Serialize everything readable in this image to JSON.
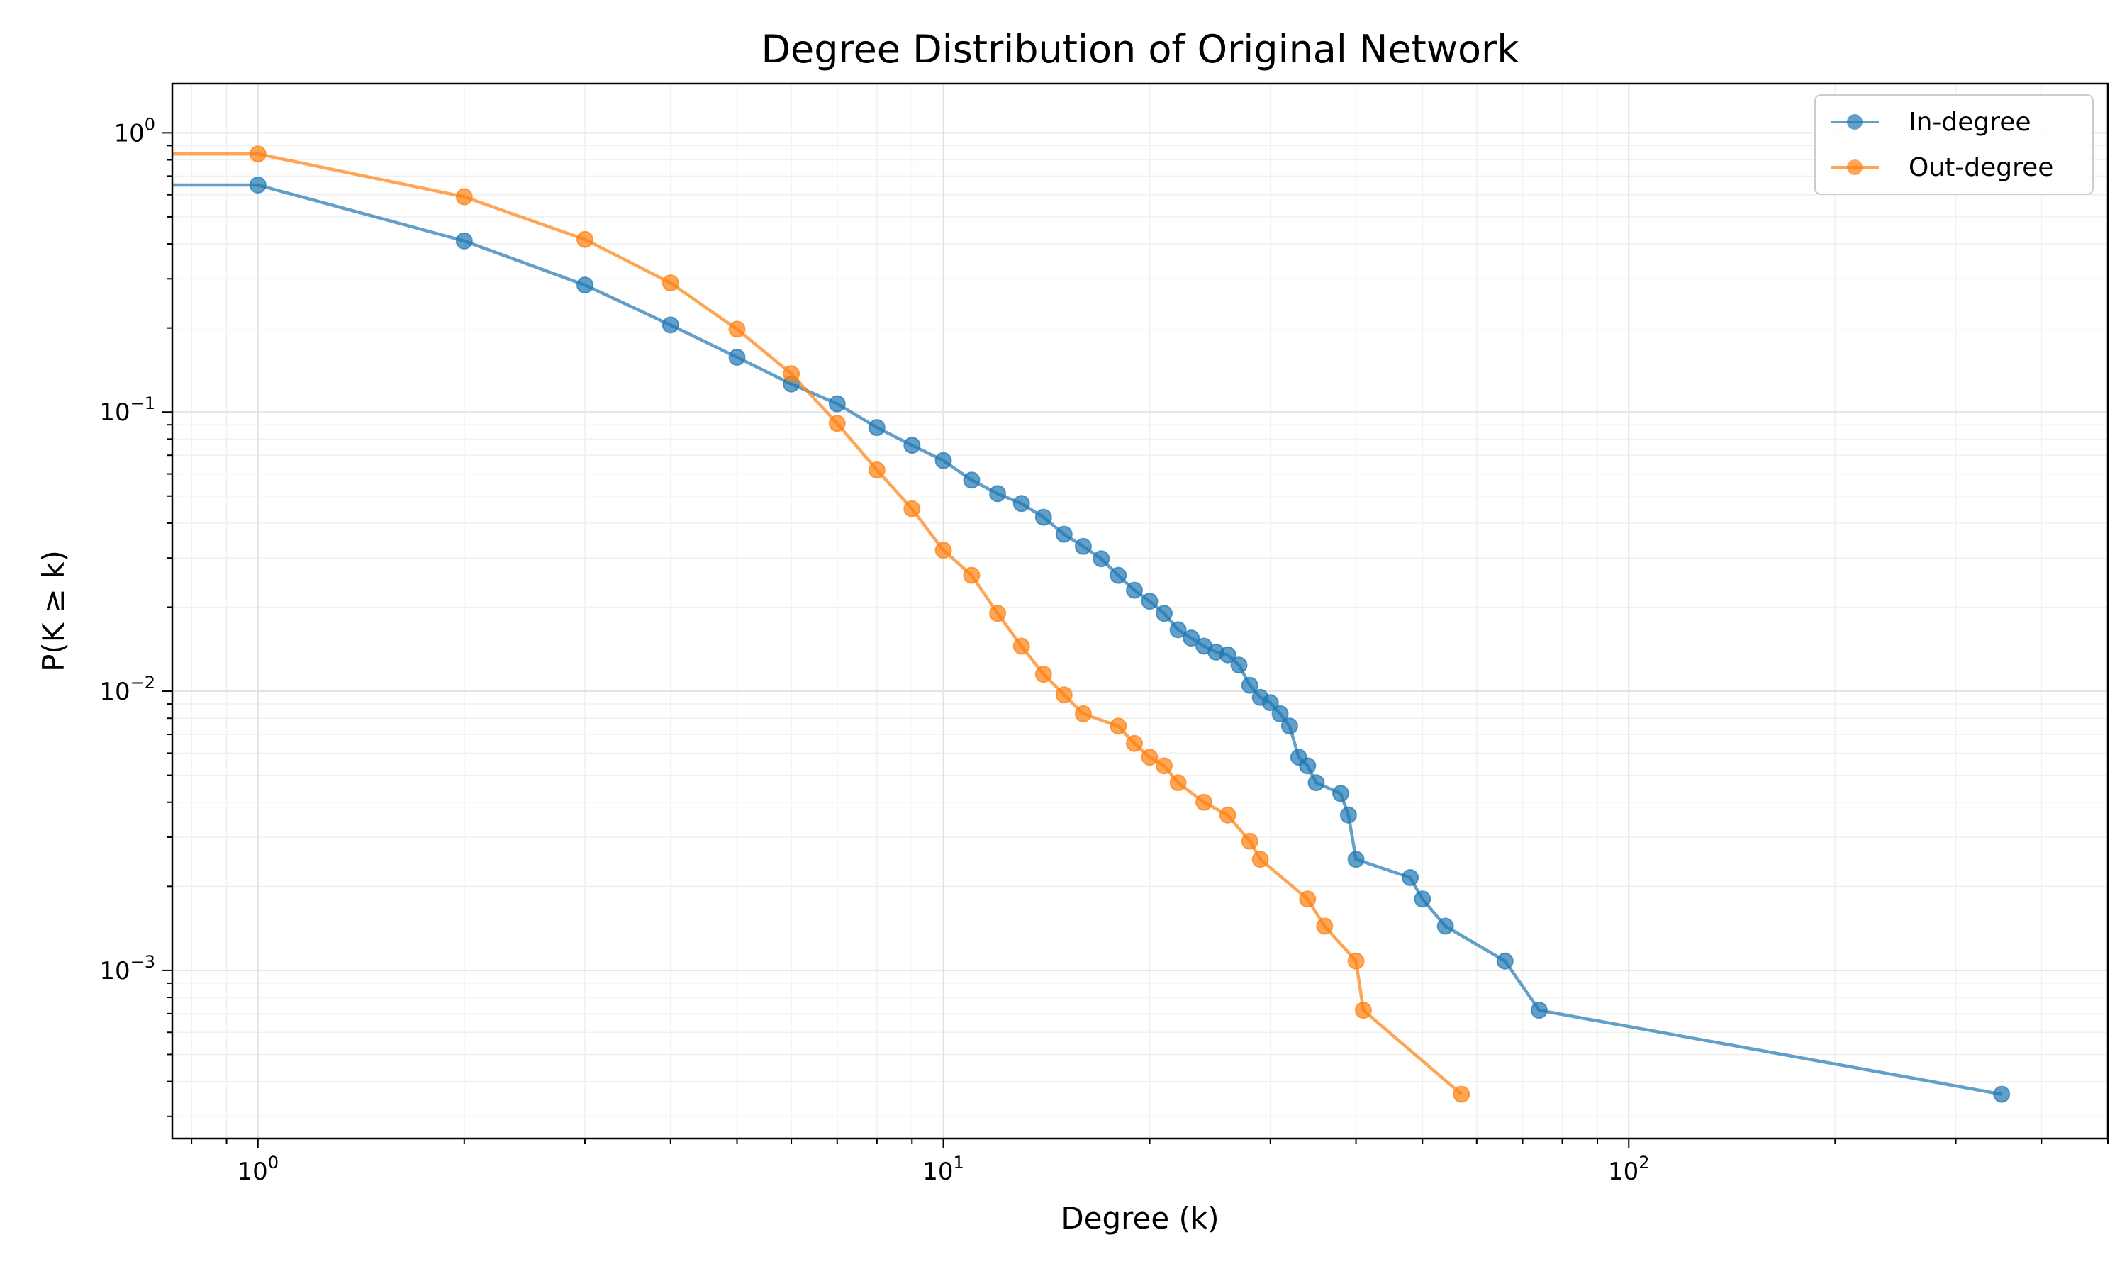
{
  "chart_data": {
    "type": "line",
    "title": "Degree Distribution of Original Network",
    "xlabel": "Degree (k)",
    "ylabel": "P(K ≥ k)",
    "x_scale": "log",
    "y_scale": "log",
    "xlim": [
      0.75,
      500
    ],
    "ylim": [
      0.00025,
      1.5
    ],
    "grid": true,
    "legend_position": "top-right",
    "x_ticks": [
      {
        "value": 1,
        "base": "10",
        "exp": "0"
      },
      {
        "value": 10,
        "base": "10",
        "exp": "1"
      },
      {
        "value": 100,
        "base": "10",
        "exp": "2"
      }
    ],
    "y_ticks": [
      {
        "value": 1,
        "base": "10",
        "exp": "0"
      },
      {
        "value": 0.1,
        "base": "10",
        "exp": "−1"
      },
      {
        "value": 0.01,
        "base": "10",
        "exp": "−2"
      },
      {
        "value": 0.001,
        "base": "10",
        "exp": "−3"
      }
    ],
    "series": [
      {
        "name": "In-degree",
        "color": "#1f77b4",
        "x": [
          1,
          2,
          3,
          4,
          5,
          6,
          7,
          8,
          9,
          10,
          11,
          12,
          13,
          14,
          15,
          16,
          17,
          18,
          19,
          20,
          21,
          22,
          23,
          24,
          25,
          26,
          27,
          28,
          29,
          30,
          31,
          32,
          33,
          34,
          35,
          38,
          39,
          40,
          48,
          50,
          54,
          66,
          74,
          350
        ],
        "y": [
          0.65,
          0.41,
          0.285,
          0.205,
          0.157,
          0.126,
          0.107,
          0.088,
          0.076,
          0.067,
          0.057,
          0.051,
          0.047,
          0.042,
          0.0365,
          0.033,
          0.0298,
          0.026,
          0.023,
          0.021,
          0.019,
          0.0166,
          0.0155,
          0.0145,
          0.0138,
          0.0135,
          0.0124,
          0.0105,
          0.0095,
          0.0091,
          0.0083,
          0.0075,
          0.0058,
          0.0054,
          0.0047,
          0.0043,
          0.0036,
          0.0025,
          0.00215,
          0.0018,
          0.00144,
          0.00108,
          0.00072,
          0.00036
        ]
      },
      {
        "name": "Out-degree",
        "color": "#ff7f0e",
        "x": [
          1,
          2,
          3,
          4,
          5,
          6,
          7,
          8,
          9,
          10,
          11,
          12,
          13,
          14,
          15,
          16,
          18,
          19,
          20,
          21,
          22,
          24,
          26,
          28,
          29,
          34,
          36,
          40,
          41,
          57
        ],
        "y": [
          0.84,
          0.59,
          0.415,
          0.29,
          0.198,
          0.137,
          0.091,
          0.062,
          0.045,
          0.032,
          0.026,
          0.019,
          0.0145,
          0.0115,
          0.0097,
          0.0083,
          0.0075,
          0.0065,
          0.0058,
          0.0054,
          0.0047,
          0.004,
          0.0036,
          0.0029,
          0.0025,
          0.0018,
          0.00144,
          0.00108,
          0.00072,
          0.00036
        ]
      }
    ]
  }
}
